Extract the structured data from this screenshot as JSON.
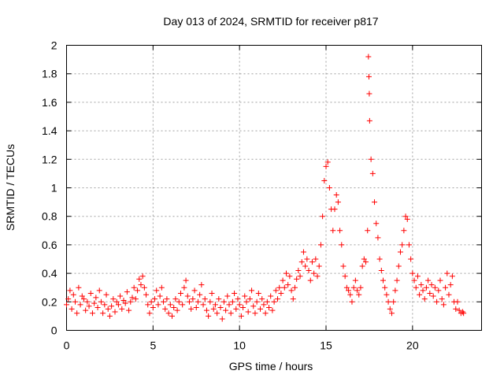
{
  "chart_data": {
    "type": "scatter",
    "title": "Day 013 of 2024, SRMTID for receiver p817",
    "xlabel": "GPS time / hours",
    "ylabel": "SRMTID / TECUs",
    "xlim": [
      0,
      23.99
    ],
    "ylim": [
      0,
      2
    ],
    "xticks": [
      0,
      5,
      10,
      15,
      20
    ],
    "yticks": [
      0,
      0.2,
      0.4,
      0.6,
      0.8,
      1,
      1.2,
      1.4,
      1.6,
      1.8,
      2
    ],
    "xtick_labels": [
      "0",
      "5",
      "10",
      "15",
      "20"
    ],
    "ytick_labels": [
      "0",
      "0.2",
      "0.4",
      "0.6",
      "0.8",
      "1",
      "1.2",
      "1.4",
      "1.6",
      "1.8",
      "2"
    ],
    "grid": true,
    "marker": "+",
    "color": "#ff0000",
    "series": [
      {
        "name": "SRMTID",
        "points": [
          [
            0.0,
            0.18
          ],
          [
            0.1,
            0.22
          ],
          [
            0.2,
            0.28
          ],
          [
            0.3,
            0.15
          ],
          [
            0.4,
            0.25
          ],
          [
            0.5,
            0.2
          ],
          [
            0.6,
            0.12
          ],
          [
            0.7,
            0.3
          ],
          [
            0.8,
            0.18
          ],
          [
            0.9,
            0.24
          ],
          [
            1.0,
            0.22
          ],
          [
            1.1,
            0.14
          ],
          [
            1.2,
            0.2
          ],
          [
            1.3,
            0.17
          ],
          [
            1.4,
            0.26
          ],
          [
            1.5,
            0.12
          ],
          [
            1.6,
            0.19
          ],
          [
            1.7,
            0.23
          ],
          [
            1.8,
            0.16
          ],
          [
            1.9,
            0.28
          ],
          [
            2.0,
            0.2
          ],
          [
            2.1,
            0.12
          ],
          [
            2.2,
            0.18
          ],
          [
            2.3,
            0.25
          ],
          [
            2.4,
            0.15
          ],
          [
            2.5,
            0.1
          ],
          [
            2.6,
            0.17
          ],
          [
            2.7,
            0.22
          ],
          [
            2.8,
            0.13
          ],
          [
            2.9,
            0.2
          ],
          [
            3.0,
            0.18
          ],
          [
            3.1,
            0.24
          ],
          [
            3.2,
            0.15
          ],
          [
            3.3,
            0.21
          ],
          [
            3.4,
            0.19
          ],
          [
            3.5,
            0.27
          ],
          [
            3.6,
            0.14
          ],
          [
            3.7,
            0.2
          ],
          [
            3.8,
            0.23
          ],
          [
            3.9,
            0.3
          ],
          [
            4.0,
            0.22
          ],
          [
            4.1,
            0.28
          ],
          [
            4.2,
            0.36
          ],
          [
            4.3,
            0.32
          ],
          [
            4.4,
            0.38
          ],
          [
            4.5,
            0.3
          ],
          [
            4.6,
            0.25
          ],
          [
            4.7,
            0.18
          ],
          [
            4.8,
            0.12
          ],
          [
            4.9,
            0.2
          ],
          [
            5.0,
            0.16
          ],
          [
            5.1,
            0.22
          ],
          [
            5.2,
            0.28
          ],
          [
            5.3,
            0.18
          ],
          [
            5.4,
            0.24
          ],
          [
            5.5,
            0.3
          ],
          [
            5.6,
            0.2
          ],
          [
            5.7,
            0.15
          ],
          [
            5.8,
            0.22
          ],
          [
            5.9,
            0.12
          ],
          [
            6.0,
            0.18
          ],
          [
            6.1,
            0.1
          ],
          [
            6.2,
            0.16
          ],
          [
            6.3,
            0.22
          ],
          [
            6.4,
            0.14
          ],
          [
            6.5,
            0.2
          ],
          [
            6.6,
            0.26
          ],
          [
            6.7,
            0.18
          ],
          [
            6.8,
            0.3
          ],
          [
            6.9,
            0.35
          ],
          [
            7.0,
            0.24
          ],
          [
            7.1,
            0.2
          ],
          [
            7.2,
            0.15
          ],
          [
            7.3,
            0.22
          ],
          [
            7.4,
            0.28
          ],
          [
            7.5,
            0.16
          ],
          [
            7.6,
            0.2
          ],
          [
            7.7,
            0.25
          ],
          [
            7.8,
            0.32
          ],
          [
            7.9,
            0.18
          ],
          [
            8.0,
            0.22
          ],
          [
            8.1,
            0.14
          ],
          [
            8.2,
            0.1
          ],
          [
            8.3,
            0.2
          ],
          [
            8.4,
            0.26
          ],
          [
            8.5,
            0.15
          ],
          [
            8.6,
            0.18
          ],
          [
            8.7,
            0.12
          ],
          [
            8.8,
            0.22
          ],
          [
            8.9,
            0.16
          ],
          [
            9.0,
            0.08
          ],
          [
            9.1,
            0.2
          ],
          [
            9.2,
            0.14
          ],
          [
            9.3,
            0.24
          ],
          [
            9.4,
            0.18
          ],
          [
            9.5,
            0.12
          ],
          [
            9.6,
            0.2
          ],
          [
            9.7,
            0.26
          ],
          [
            9.8,
            0.15
          ],
          [
            9.9,
            0.22
          ],
          [
            10.0,
            0.18
          ],
          [
            10.1,
            0.1
          ],
          [
            10.2,
            0.16
          ],
          [
            10.3,
            0.24
          ],
          [
            10.4,
            0.2
          ],
          [
            10.5,
            0.13
          ],
          [
            10.6,
            0.22
          ],
          [
            10.7,
            0.28
          ],
          [
            10.8,
            0.17
          ],
          [
            10.9,
            0.12
          ],
          [
            11.0,
            0.2
          ],
          [
            11.1,
            0.26
          ],
          [
            11.2,
            0.15
          ],
          [
            11.3,
            0.22
          ],
          [
            11.4,
            0.18
          ],
          [
            11.5,
            0.12
          ],
          [
            11.6,
            0.2
          ],
          [
            11.7,
            0.16
          ],
          [
            11.8,
            0.24
          ],
          [
            11.9,
            0.14
          ],
          [
            12.0,
            0.2
          ],
          [
            12.1,
            0.28
          ],
          [
            12.2,
            0.22
          ],
          [
            12.3,
            0.3
          ],
          [
            12.4,
            0.26
          ],
          [
            12.5,
            0.35
          ],
          [
            12.6,
            0.3
          ],
          [
            12.7,
            0.4
          ],
          [
            12.8,
            0.32
          ],
          [
            12.9,
            0.38
          ],
          [
            13.0,
            0.28
          ],
          [
            13.1,
            0.22
          ],
          [
            13.2,
            0.3
          ],
          [
            13.3,
            0.36
          ],
          [
            13.4,
            0.42
          ],
          [
            13.5,
            0.38
          ],
          [
            13.6,
            0.48
          ],
          [
            13.7,
            0.55
          ],
          [
            13.8,
            0.45
          ],
          [
            13.9,
            0.5
          ],
          [
            14.0,
            0.42
          ],
          [
            14.1,
            0.35
          ],
          [
            14.2,
            0.48
          ],
          [
            14.3,
            0.4
          ],
          [
            14.4,
            0.5
          ],
          [
            14.5,
            0.38
          ],
          [
            14.6,
            0.45
          ],
          [
            14.7,
            0.6
          ],
          [
            14.8,
            0.8
          ],
          [
            14.9,
            1.05
          ],
          [
            15.0,
            1.15
          ],
          [
            15.1,
            1.18
          ],
          [
            15.2,
            1.0
          ],
          [
            15.3,
            0.85
          ],
          [
            15.4,
            0.7
          ],
          [
            15.5,
            0.85
          ],
          [
            15.6,
            0.95
          ],
          [
            15.7,
            0.9
          ],
          [
            15.8,
            0.7
          ],
          [
            15.9,
            0.6
          ],
          [
            16.0,
            0.45
          ],
          [
            16.1,
            0.38
          ],
          [
            16.2,
            0.3
          ],
          [
            16.3,
            0.28
          ],
          [
            16.4,
            0.25
          ],
          [
            16.5,
            0.2
          ],
          [
            16.6,
            0.3
          ],
          [
            16.7,
            0.35
          ],
          [
            16.8,
            0.28
          ],
          [
            16.9,
            0.25
          ],
          [
            17.0,
            0.3
          ],
          [
            17.1,
            0.45
          ],
          [
            17.2,
            0.5
          ],
          [
            17.3,
            0.48
          ],
          [
            17.4,
            0.7
          ],
          [
            17.45,
            1.92
          ],
          [
            17.48,
            1.78
          ],
          [
            17.5,
            1.66
          ],
          [
            17.52,
            1.47
          ],
          [
            17.6,
            1.2
          ],
          [
            17.7,
            1.1
          ],
          [
            17.8,
            0.9
          ],
          [
            17.9,
            0.75
          ],
          [
            18.0,
            0.65
          ],
          [
            18.1,
            0.5
          ],
          [
            18.2,
            0.42
          ],
          [
            18.3,
            0.35
          ],
          [
            18.4,
            0.3
          ],
          [
            18.5,
            0.25
          ],
          [
            18.6,
            0.2
          ],
          [
            18.7,
            0.15
          ],
          [
            18.8,
            0.12
          ],
          [
            18.9,
            0.2
          ],
          [
            19.0,
            0.28
          ],
          [
            19.1,
            0.35
          ],
          [
            19.2,
            0.45
          ],
          [
            19.3,
            0.55
          ],
          [
            19.4,
            0.6
          ],
          [
            19.5,
            0.7
          ],
          [
            19.6,
            0.8
          ],
          [
            19.7,
            0.78
          ],
          [
            19.8,
            0.6
          ],
          [
            19.9,
            0.5
          ],
          [
            20.0,
            0.4
          ],
          [
            20.1,
            0.35
          ],
          [
            20.2,
            0.3
          ],
          [
            20.3,
            0.38
          ],
          [
            20.4,
            0.25
          ],
          [
            20.5,
            0.32
          ],
          [
            20.6,
            0.28
          ],
          [
            20.7,
            0.22
          ],
          [
            20.8,
            0.3
          ],
          [
            20.9,
            0.35
          ],
          [
            21.0,
            0.26
          ],
          [
            21.1,
            0.32
          ],
          [
            21.2,
            0.24
          ],
          [
            21.3,
            0.3
          ],
          [
            21.4,
            0.2
          ],
          [
            21.5,
            0.28
          ],
          [
            21.6,
            0.35
          ],
          [
            21.7,
            0.22
          ],
          [
            21.8,
            0.18
          ],
          [
            21.9,
            0.3
          ],
          [
            22.0,
            0.4
          ],
          [
            22.1,
            0.25
          ],
          [
            22.2,
            0.32
          ],
          [
            22.3,
            0.38
          ],
          [
            22.4,
            0.2
          ],
          [
            22.5,
            0.15
          ],
          [
            22.6,
            0.2
          ],
          [
            22.7,
            0.14
          ],
          [
            22.8,
            0.12
          ],
          [
            22.9,
            0.13
          ],
          [
            22.95,
            0.12
          ]
        ]
      }
    ]
  }
}
